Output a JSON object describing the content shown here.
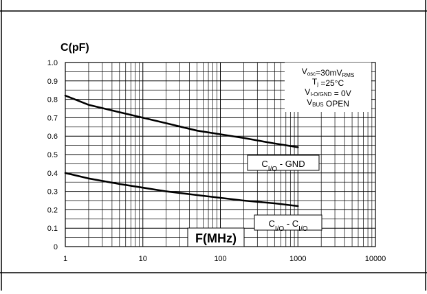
{
  "chart_data": {
    "type": "line",
    "x_scale": "log",
    "xlim": [
      1,
      10000
    ],
    "ylim": [
      0,
      1.0
    ],
    "grid": true,
    "ylabel": "C(pF)",
    "xlabel": "F(MHz)",
    "x_ticks": [
      {
        "value": 1,
        "label": "1"
      },
      {
        "value": 10,
        "label": "10"
      },
      {
        "value": 100,
        "label": "100"
      },
      {
        "value": 1000,
        "label": "1000"
      },
      {
        "value": 10000,
        "label": "10000"
      }
    ],
    "y_ticks": [
      {
        "value": 0,
        "label": "0"
      },
      {
        "value": 0.1,
        "label": "0.1"
      },
      {
        "value": 0.2,
        "label": "0.2"
      },
      {
        "value": 0.3,
        "label": "0.3"
      },
      {
        "value": 0.4,
        "label": "0.4"
      },
      {
        "value": 0.5,
        "label": "0.5"
      },
      {
        "value": 0.6,
        "label": "0.6"
      },
      {
        "value": 0.7,
        "label": "0.7"
      },
      {
        "value": 0.8,
        "label": "0.8"
      },
      {
        "value": 0.9,
        "label": "0.9"
      },
      {
        "value": 1.0,
        "label": "1.0"
      }
    ],
    "series": [
      {
        "label_main": "C",
        "label_sub": "I/O",
        "label_rest": " - GND",
        "x": [
          1,
          2,
          5,
          10,
          20,
          50,
          100,
          200,
          500,
          1000
        ],
        "y": [
          0.82,
          0.77,
          0.73,
          0.7,
          0.67,
          0.63,
          0.61,
          0.59,
          0.56,
          0.54
        ]
      },
      {
        "label_main": "C",
        "label_sub": "I/O",
        "label_rest": " - ",
        "label_main2": "C",
        "label_sub2": "I/O",
        "x": [
          1,
          2,
          5,
          10,
          20,
          50,
          100,
          200,
          500,
          1000
        ],
        "y": [
          0.4,
          0.37,
          0.34,
          0.32,
          0.3,
          0.28,
          0.265,
          0.25,
          0.235,
          0.22
        ]
      }
    ],
    "conditions": [
      {
        "a": "V",
        "b": "osc",
        "c": "=30mV",
        "d": "RMS",
        "e": ""
      },
      {
        "a": "T",
        "b": "j",
        "c": " =25°C",
        "d": "",
        "e": ""
      },
      {
        "a": "V",
        "b": "I-O/GND",
        "c": " = 0V",
        "d": "",
        "e": ""
      },
      {
        "a": "V",
        "b": "BUS",
        "c": " OPEN",
        "d": "",
        "e": ""
      }
    ]
  }
}
